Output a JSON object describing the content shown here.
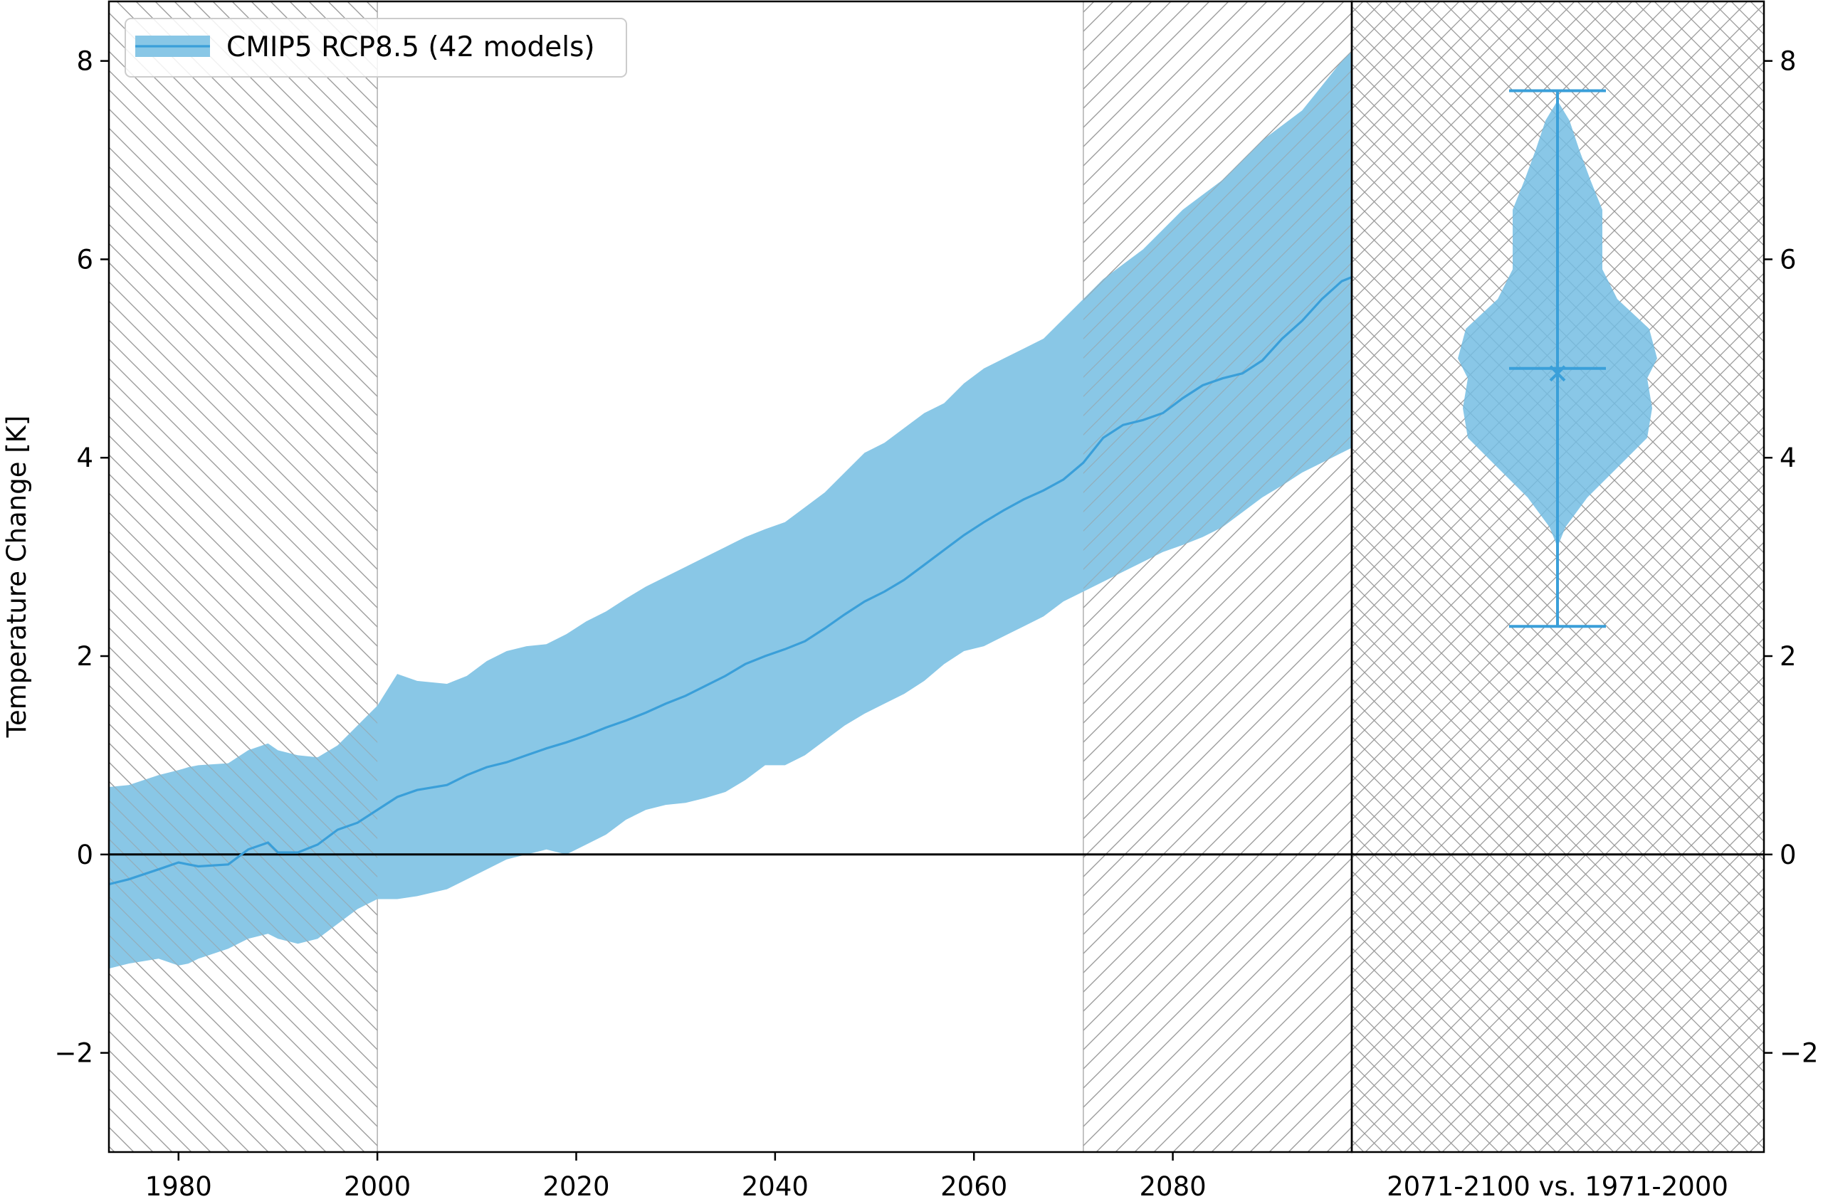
{
  "chart_data": {
    "type": "area",
    "title": "",
    "ylabel": "Temperature Change [K]",
    "xlabel": "",
    "xlim": [
      1973,
      2098
    ],
    "ylim": [
      -3,
      8.6
    ],
    "x_ticks": [
      1980,
      2000,
      2020,
      2040,
      2060,
      2080
    ],
    "y_ticks": [
      -2,
      0,
      2,
      4,
      6,
      8
    ],
    "y_tick_labels": [
      "−2",
      "0",
      "2",
      "4",
      "6",
      "8"
    ],
    "grid": false,
    "legend_placement": "top-left",
    "hatched_periods": [
      {
        "from": 1973,
        "to": 2000,
        "pattern": "backslash"
      },
      {
        "from": 2071,
        "to": 2098,
        "pattern": "slash"
      }
    ],
    "series": [
      {
        "name": "CMIP5 RCP8.5 (42 models)",
        "color": "#3a9fd9",
        "fill_color": "#89c7e6",
        "x": [
          1973,
          1975,
          1978,
          1980,
          1981,
          1982,
          1985,
          1987,
          1989,
          1990,
          1992,
          1994,
          1996,
          1998,
          2000,
          2002,
          2004,
          2007,
          2009,
          2011,
          2013,
          2015,
          2017,
          2019,
          2021,
          2023,
          2025,
          2027,
          2029,
          2031,
          2033,
          2035,
          2037,
          2039,
          2041,
          2043,
          2045,
          2047,
          2049,
          2051,
          2053,
          2055,
          2057,
          2059,
          2061,
          2063,
          2065,
          2067,
          2069,
          2071,
          2073,
          2075,
          2077,
          2079,
          2081,
          2083,
          2085,
          2087,
          2089,
          2091,
          2093,
          2095,
          2097,
          2098
        ],
        "mean": [
          -0.3,
          -0.25,
          -0.15,
          -0.08,
          -0.1,
          -0.12,
          -0.1,
          0.05,
          0.12,
          0.02,
          0.02,
          0.1,
          0.25,
          0.32,
          0.45,
          0.58,
          0.65,
          0.7,
          0.8,
          0.88,
          0.93,
          1.0,
          1.07,
          1.13,
          1.2,
          1.28,
          1.35,
          1.43,
          1.52,
          1.6,
          1.7,
          1.8,
          1.92,
          2.0,
          2.07,
          2.15,
          2.28,
          2.42,
          2.55,
          2.65,
          2.77,
          2.92,
          3.07,
          3.22,
          3.35,
          3.47,
          3.58,
          3.67,
          3.78,
          3.95,
          4.2,
          4.33,
          4.38,
          4.45,
          4.6,
          4.73,
          4.8,
          4.85,
          4.98,
          5.2,
          5.38,
          5.6,
          5.78,
          5.82
        ],
        "upper": [
          0.68,
          0.7,
          0.8,
          0.85,
          0.88,
          0.9,
          0.92,
          1.05,
          1.12,
          1.05,
          1.0,
          0.98,
          1.1,
          1.3,
          1.5,
          1.82,
          1.75,
          1.72,
          1.8,
          1.95,
          2.05,
          2.1,
          2.12,
          2.22,
          2.35,
          2.45,
          2.58,
          2.7,
          2.8,
          2.9,
          3.0,
          3.1,
          3.2,
          3.28,
          3.35,
          3.5,
          3.65,
          3.85,
          4.05,
          4.15,
          4.3,
          4.45,
          4.55,
          4.75,
          4.9,
          5.0,
          5.1,
          5.2,
          5.4,
          5.6,
          5.8,
          5.95,
          6.1,
          6.3,
          6.5,
          6.65,
          6.8,
          7.0,
          7.2,
          7.35,
          7.5,
          7.75,
          8.0,
          8.1
        ],
        "lower": [
          -1.15,
          -1.1,
          -1.05,
          -1.12,
          -1.1,
          -1.05,
          -0.95,
          -0.85,
          -0.8,
          -0.85,
          -0.9,
          -0.85,
          -0.7,
          -0.55,
          -0.45,
          -0.45,
          -0.42,
          -0.35,
          -0.25,
          -0.15,
          -0.05,
          0.0,
          0.05,
          0.0,
          0.1,
          0.2,
          0.35,
          0.45,
          0.5,
          0.52,
          0.57,
          0.63,
          0.75,
          0.9,
          0.9,
          1.0,
          1.15,
          1.3,
          1.42,
          1.52,
          1.62,
          1.75,
          1.92,
          2.05,
          2.1,
          2.2,
          2.3,
          2.4,
          2.55,
          2.65,
          2.75,
          2.85,
          2.95,
          3.05,
          3.12,
          3.2,
          3.3,
          3.45,
          3.6,
          3.72,
          3.85,
          3.95,
          4.05,
          4.1
        ]
      }
    ],
    "violin": {
      "label": "2071-2100 vs. 1971-2000",
      "min": 2.3,
      "max": 7.7,
      "mean": 4.9,
      "median": 4.85,
      "density_profile": [
        {
          "y": 3.1,
          "w": 0.0
        },
        {
          "y": 3.3,
          "w": 0.08
        },
        {
          "y": 3.6,
          "w": 0.3
        },
        {
          "y": 3.9,
          "w": 0.6
        },
        {
          "y": 4.2,
          "w": 0.9
        },
        {
          "y": 4.5,
          "w": 0.95
        },
        {
          "y": 4.8,
          "w": 0.9
        },
        {
          "y": 5.0,
          "w": 1.0
        },
        {
          "y": 5.3,
          "w": 0.92
        },
        {
          "y": 5.6,
          "w": 0.6
        },
        {
          "y": 5.9,
          "w": 0.45
        },
        {
          "y": 6.2,
          "w": 0.45
        },
        {
          "y": 6.5,
          "w": 0.45
        },
        {
          "y": 6.8,
          "w": 0.33
        },
        {
          "y": 7.1,
          "w": 0.22
        },
        {
          "y": 7.4,
          "w": 0.12
        },
        {
          "y": 7.6,
          "w": 0.0
        }
      ]
    },
    "colors": {
      "line": "#3a9fd9",
      "band": "#89c7e6",
      "violin_body": "#74bde3",
      "hatch": "#9a9a9a",
      "axis": "#000000"
    }
  }
}
